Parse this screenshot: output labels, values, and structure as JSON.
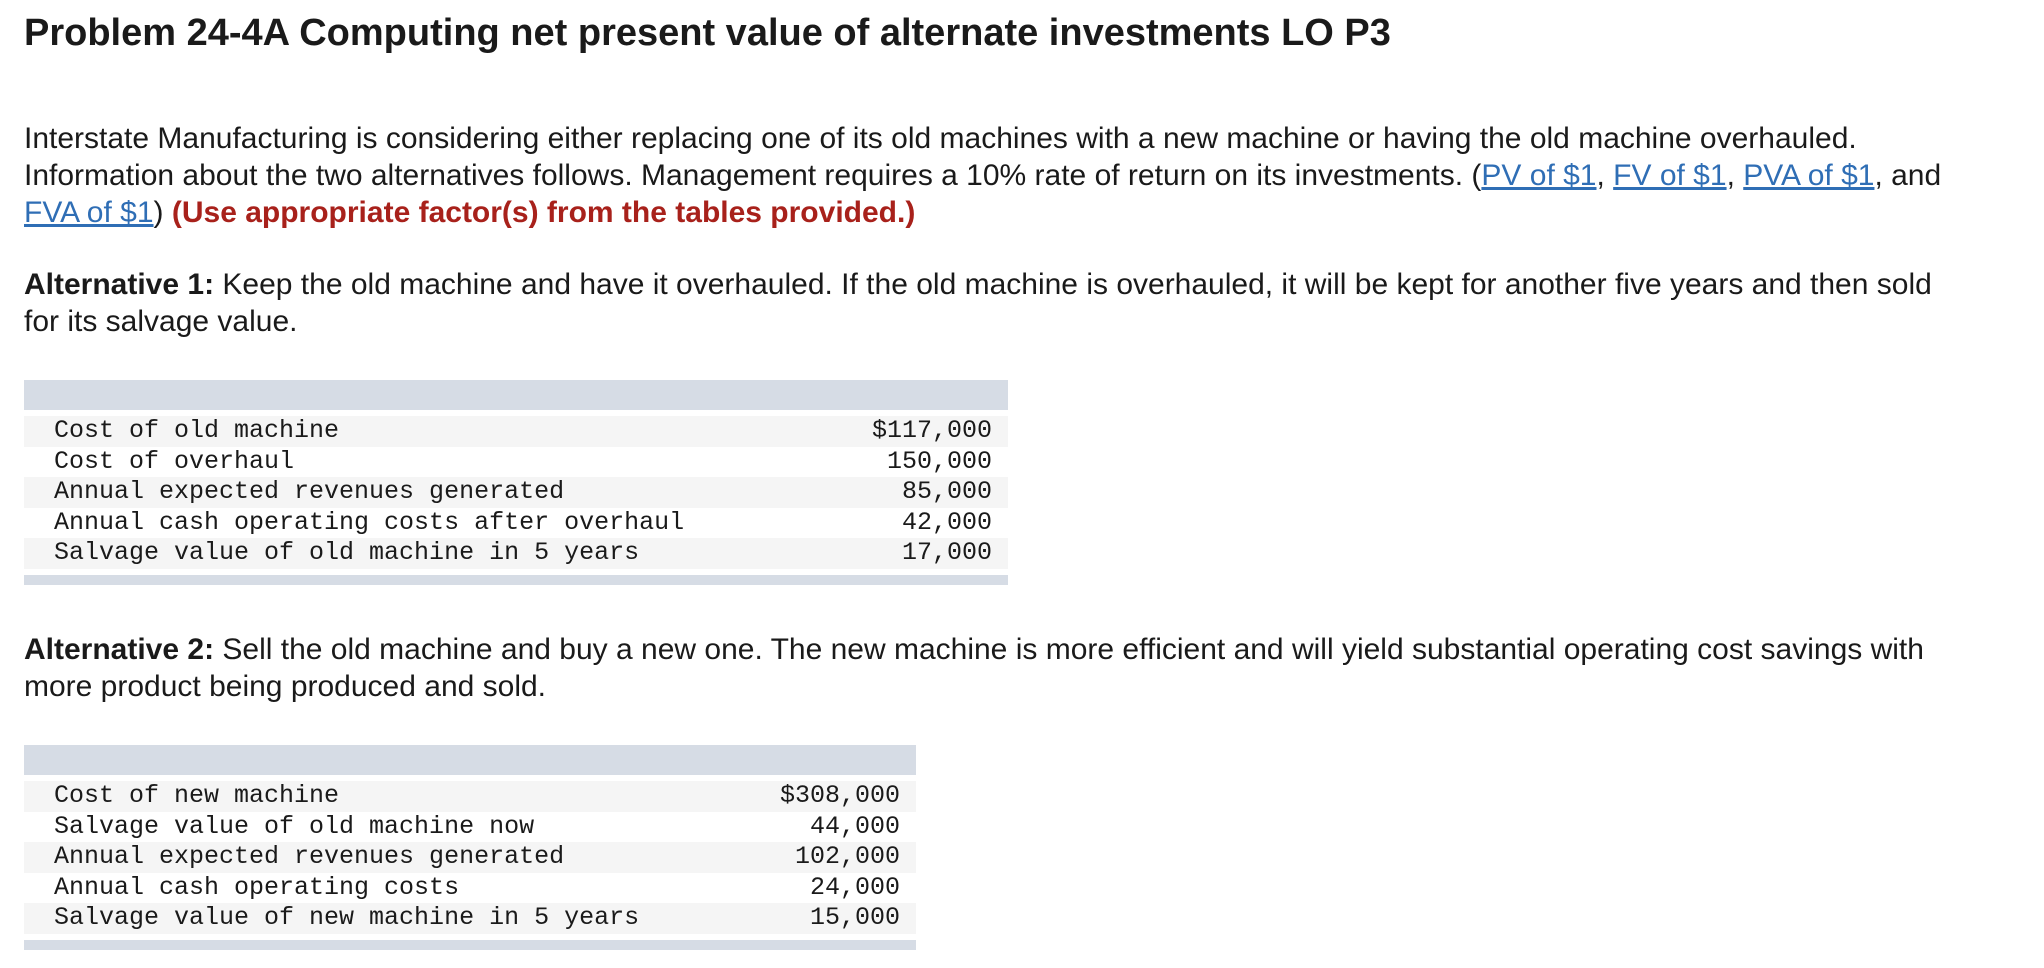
{
  "title": "Problem 24-4A Computing net present value of alternate investments LO P3",
  "intro": {
    "text_before": "Interstate Manufacturing is considering either replacing one of its old machines with a new machine or having the old machine overhauled. Information about the two alternatives follows. Management requires a 10% rate of return on its investments. (",
    "links": [
      "PV of $1",
      "FV of $1",
      "PVA of $1",
      "FVA of $1"
    ],
    "sep_comma": ", ",
    "sep_and": ", and ",
    "close_paren": ") ",
    "instruction": "(Use appropriate factor(s) from the tables provided.)"
  },
  "alt1": {
    "heading": "Alternative 1:",
    "text": " Keep the old machine and have it overhauled. If the old machine is overhauled, it will be kept for another five years and then sold for its salvage value.",
    "rows": [
      {
        "label": "Cost of old machine",
        "value": "$117,000"
      },
      {
        "label": "Cost of overhaul",
        "value": "150,000"
      },
      {
        "label": "Annual expected revenues generated",
        "value": "85,000"
      },
      {
        "label": "Annual cash operating costs after overhaul",
        "value": "42,000"
      },
      {
        "label": "Salvage value of old machine in 5 years",
        "value": "17,000"
      }
    ]
  },
  "alt2": {
    "heading": "Alternative 2:",
    "text": " Sell the old machine and buy a new one. The new machine is more efficient and will yield substantial operating cost savings with more product being produced and sold.",
    "rows": [
      {
        "label": "Cost of new machine",
        "value": "$308,000"
      },
      {
        "label": "Salvage value of old machine now",
        "value": "44,000"
      },
      {
        "label": "Annual expected revenues generated",
        "value": "102,000"
      },
      {
        "label": "Annual cash operating costs",
        "value": "24,000"
      },
      {
        "label": "Salvage value of new machine in 5 years",
        "value": "15,000"
      }
    ]
  },
  "colors": {
    "link": "#2f6eb5",
    "instruction": "#a8211b",
    "table_band": "#d6dce5"
  }
}
